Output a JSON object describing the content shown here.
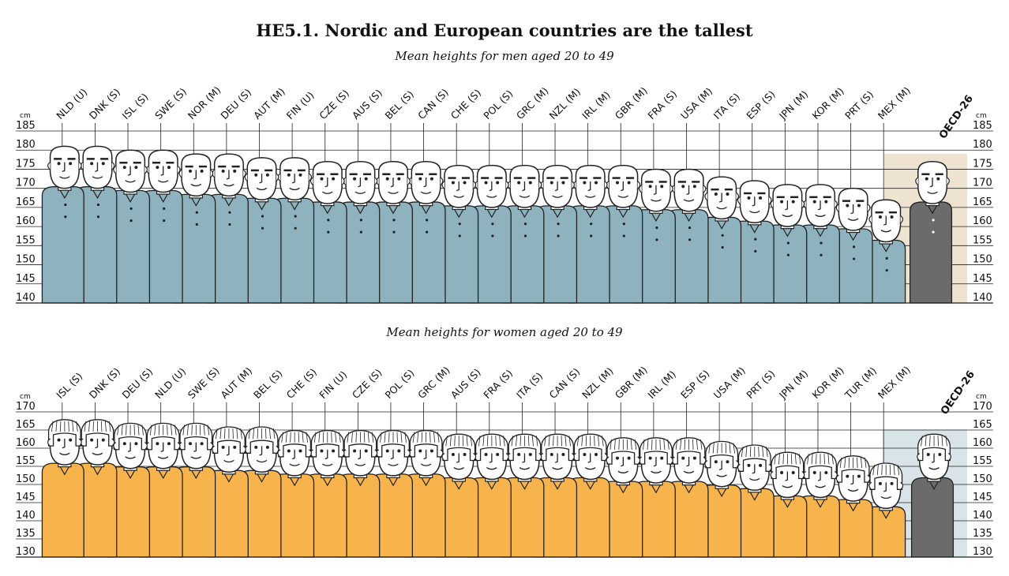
{
  "title": "HE5.1.  Nordic and European countries are the tallest",
  "chart_data": [
    {
      "type": "bar",
      "title": "Mean heights for men aged 20 to 49",
      "unit": "cm",
      "ylim": [
        140,
        185
      ],
      "yticks": [
        185,
        180,
        175,
        170,
        165,
        160,
        155,
        150,
        145,
        140
      ],
      "categories": [
        "NLD (U)",
        "DNK (S)",
        "ISL (S)",
        "SWE (S)",
        "NOR (M)",
        "DEU (S)",
        "AUT (M)",
        "FIN (U)",
        "CZE (S)",
        "AUS (S)",
        "BEL (S)",
        "CAN (S)",
        "CHE (S)",
        "POL (S)",
        "GRC (M)",
        "NZL (M)",
        "IRL (M)",
        "GBR (M)",
        "FRA (S)",
        "USA (M)",
        "ITA (S)",
        "ESP (S)",
        "JPN (M)",
        "KOR (M)",
        "PRT (S)",
        "MEX (M)"
      ],
      "values": [
        181,
        181,
        180,
        180,
        179,
        179,
        178,
        178,
        177,
        177,
        177,
        177,
        176,
        176,
        176,
        176,
        176,
        176,
        175,
        175,
        173,
        172,
        171,
        171,
        170,
        167
      ],
      "reference": {
        "label": "OECD-26",
        "value": 177
      },
      "colors": {
        "figure": "#8eb3bf",
        "reference_figure": "#6b6b6b",
        "reference_band": "#eee3d0"
      }
    },
    {
      "type": "bar",
      "title": "Mean heights for women aged 20 to 49",
      "unit": "cm",
      "ylim": [
        130,
        170
      ],
      "yticks": [
        170,
        165,
        160,
        155,
        150,
        145,
        140,
        135,
        130
      ],
      "categories": [
        "ISL (S)",
        "DNK (S)",
        "DEU (S)",
        "NLD (U)",
        "SWE (S)",
        "AUT (M)",
        "BEL (S)",
        "CHE (S)",
        "FIN (U)",
        "CZE (S)",
        "POL (S)",
        "GRC (M)",
        "AUS (S)",
        "FRA (S)",
        "ITA (S)",
        "CAN (S)",
        "NZL (M)",
        "GBR (M)",
        "IRL (M)",
        "ESP (S)",
        "USA (M)",
        "PRT (S)",
        "JPN (M)",
        "KOR (M)",
        "TUR (M)",
        "MEX (M)"
      ],
      "values": [
        167,
        167,
        166,
        166,
        166,
        165,
        165,
        164,
        164,
        164,
        164,
        164,
        163,
        163,
        163,
        163,
        163,
        162,
        162,
        162,
        161,
        160,
        158,
        158,
        157,
        155
      ],
      "reference": {
        "label": "OECD-26",
        "value": 163
      },
      "colors": {
        "figure": "#f7b44c",
        "reference_figure": "#6b6b6b",
        "reference_band": "#d8e4e8"
      }
    }
  ]
}
